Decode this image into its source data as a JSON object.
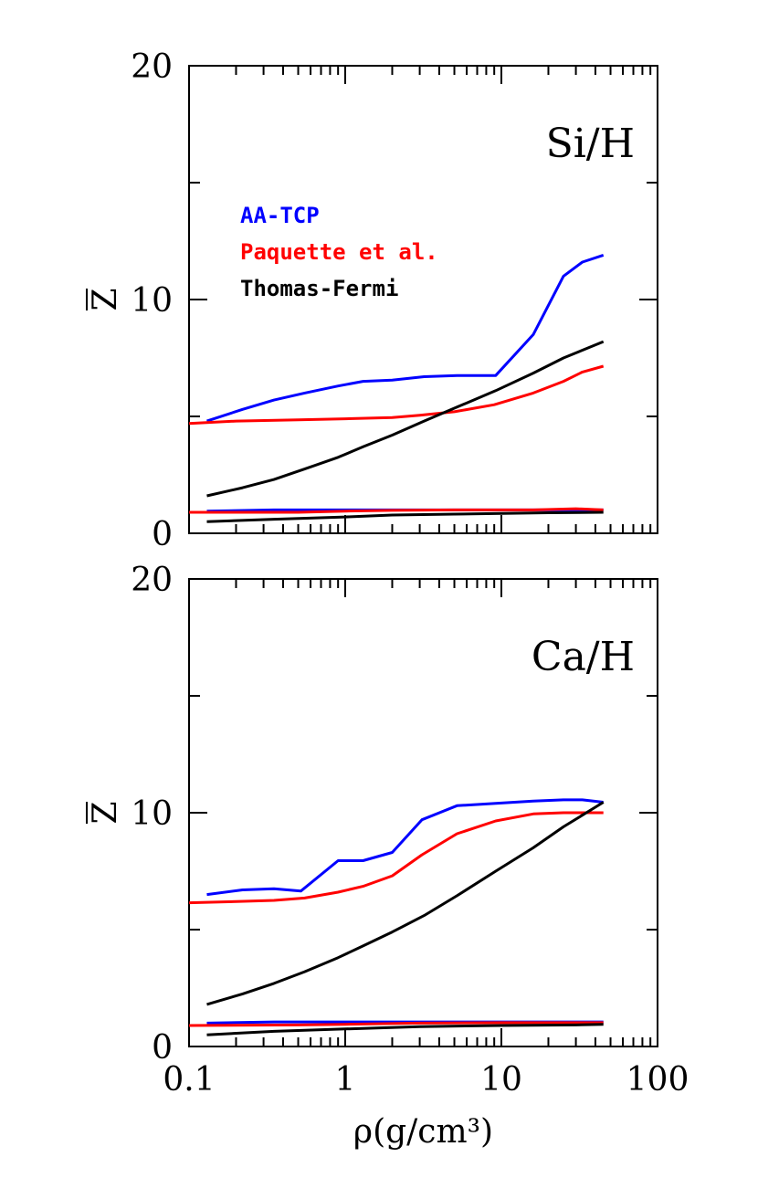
{
  "chart_data": [
    {
      "type": "line",
      "panel_label": "Si/H",
      "ylabel": "Z",
      "xlabel": "",
      "xscale": "log",
      "xlim": [
        0.1,
        100
      ],
      "ylim": [
        0,
        20
      ],
      "yticks": [
        "0",
        "10",
        "20"
      ],
      "xticks": [],
      "legend": {
        "placement": "upper-left",
        "entries": [
          "AA-TCP",
          "Paquette et al.",
          "Thomas-Fermi"
        ]
      },
      "series": [
        {
          "name": "AA-TCP",
          "color": "#0000ff",
          "x": [
            0.13,
            0.22,
            0.35,
            0.55,
            0.9,
            1.3,
            2.0,
            3.2,
            5.2,
            9.2,
            16,
            25,
            33,
            45
          ],
          "y": [
            4.8,
            5.3,
            5.7,
            6.0,
            6.3,
            6.5,
            6.55,
            6.7,
            6.75,
            6.75,
            8.5,
            11.0,
            11.6,
            11.9
          ]
        },
        {
          "name": "Paquette et al.",
          "color": "#ff0000",
          "x": [
            0.1,
            0.2,
            0.5,
            1,
            2,
            3,
            5,
            9,
            16,
            25,
            33,
            45
          ],
          "y": [
            4.7,
            4.8,
            4.85,
            4.9,
            4.95,
            5.05,
            5.2,
            5.5,
            6.0,
            6.5,
            6.9,
            7.15
          ]
        },
        {
          "name": "Thomas-Fermi",
          "color": "#000000",
          "x": [
            0.13,
            0.22,
            0.35,
            0.55,
            0.9,
            1.3,
            2.0,
            3.2,
            5.2,
            9.2,
            16,
            25,
            45
          ],
          "y": [
            1.6,
            1.95,
            2.3,
            2.75,
            3.25,
            3.7,
            4.2,
            4.8,
            5.4,
            6.1,
            6.85,
            7.5,
            8.2
          ]
        },
        {
          "name": "",
          "color": "#0000ff",
          "x": [
            0.13,
            0.35,
            1,
            3,
            10,
            30,
            45
          ],
          "y": [
            0.95,
            1.0,
            1.0,
            1.0,
            1.0,
            1.0,
            1.0
          ]
        },
        {
          "name": "",
          "color": "#ff0000",
          "x": [
            0.1,
            0.5,
            1,
            2,
            5,
            10,
            16,
            30,
            45
          ],
          "y": [
            0.9,
            0.9,
            0.95,
            0.98,
            1.0,
            1.0,
            1.0,
            1.05,
            1.0
          ]
        },
        {
          "name": "",
          "color": "#000000",
          "x": [
            0.13,
            0.35,
            1,
            2,
            5,
            10,
            20,
            45
          ],
          "y": [
            0.5,
            0.6,
            0.7,
            0.78,
            0.82,
            0.85,
            0.88,
            0.9
          ]
        }
      ]
    },
    {
      "type": "line",
      "panel_label": "Ca/H",
      "ylabel": "Z",
      "xlabel": "ρ(g/cm³)",
      "xscale": "log",
      "xlim": [
        0.1,
        100
      ],
      "ylim": [
        0,
        20
      ],
      "yticks": [
        "0",
        "10",
        "20"
      ],
      "xticks": [
        "0.1",
        "1",
        "10",
        "100"
      ],
      "series": [
        {
          "name": "AA-TCP",
          "color": "#0000ff",
          "x": [
            0.13,
            0.22,
            0.35,
            0.52,
            0.9,
            1.3,
            2.0,
            3.1,
            5.2,
            9.2,
            16,
            25,
            33,
            45
          ],
          "y": [
            6.5,
            6.7,
            6.75,
            6.65,
            7.95,
            7.95,
            8.3,
            9.7,
            10.3,
            10.4,
            10.5,
            10.55,
            10.55,
            10.45
          ]
        },
        {
          "name": "Paquette et al.",
          "color": "#ff0000",
          "x": [
            0.1,
            0.2,
            0.35,
            0.55,
            0.9,
            1.3,
            2.0,
            3.1,
            5.2,
            9.2,
            16,
            25,
            45
          ],
          "y": [
            6.15,
            6.2,
            6.25,
            6.35,
            6.6,
            6.85,
            7.3,
            8.2,
            9.1,
            9.65,
            9.95,
            10.0,
            10.0
          ]
        },
        {
          "name": "Thomas-Fermi",
          "color": "#000000",
          "x": [
            0.13,
            0.22,
            0.35,
            0.55,
            0.9,
            1.3,
            2.0,
            3.2,
            5.2,
            9.2,
            16,
            25,
            45
          ],
          "y": [
            1.8,
            2.25,
            2.7,
            3.2,
            3.8,
            4.3,
            4.9,
            5.6,
            6.45,
            7.5,
            8.5,
            9.4,
            10.45
          ]
        },
        {
          "name": "",
          "color": "#0000ff",
          "x": [
            0.13,
            0.35,
            1,
            3,
            10,
            30,
            45
          ],
          "y": [
            1.0,
            1.05,
            1.05,
            1.05,
            1.05,
            1.05,
            1.05
          ]
        },
        {
          "name": "",
          "color": "#ff0000",
          "x": [
            0.1,
            0.5,
            1,
            3,
            10,
            30,
            45
          ],
          "y": [
            0.9,
            0.92,
            0.95,
            1.0,
            1.02,
            1.02,
            1.02
          ]
        },
        {
          "name": "",
          "color": "#000000",
          "x": [
            0.13,
            0.35,
            1,
            3,
            10,
            30,
            45
          ],
          "y": [
            0.5,
            0.65,
            0.75,
            0.85,
            0.9,
            0.92,
            0.95
          ]
        }
      ]
    }
  ]
}
